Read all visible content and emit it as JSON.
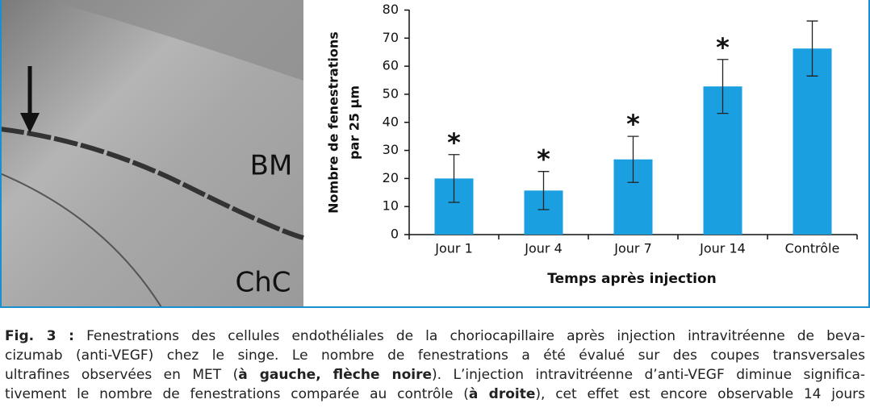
{
  "micrograph": {
    "labels": [
      "BM",
      "ChC"
    ]
  },
  "chart_data": {
    "type": "bar",
    "y_label": [
      "Nombre de fenestrations",
      "par 25 µm"
    ],
    "x_label": "Temps après injection",
    "categories": [
      "Jour 1",
      "Jour 4",
      "Jour 7",
      "Jour 14",
      "Contrôle"
    ],
    "series": [
      {
        "color": "#1a9fe0",
        "values": [
          20,
          15.7,
          26.8,
          52.8,
          66.3
        ],
        "errors": [
          8.5,
          6.8,
          8.2,
          9.6,
          9.8
        ]
      }
    ],
    "annotations": [
      "*",
      "*",
      "*",
      "*",
      null
    ],
    "ylim": [
      0,
      80
    ],
    "yticks": [
      0,
      10,
      20,
      30,
      40,
      50,
      60,
      70,
      80
    ],
    "grid": false
  },
  "caption": {
    "lines": [
      [
        {
          "text": "Fig. 3 :",
          "bold": true
        },
        {
          "text": " Fenestrations des cellules endothéliales de la choriocapillaire après injection intravitréenne de beva-",
          "bold": false
        }
      ],
      [
        {
          "text": "cizumab (anti-VEGF) chez le singe. Le nombre de fenestrations a été évalué sur des coupes transversales",
          "bold": false
        }
      ],
      [
        {
          "text": "ultrafines observées en MET (",
          "bold": false
        },
        {
          "text": "à gauche, flèche noire",
          "bold": true
        },
        {
          "text": "). L’injection intravitréenne d’anti-VEGF diminue significa-",
          "bold": false
        }
      ],
      [
        {
          "text": "tivement le nombre de fenestrations comparée au contrôle (",
          "bold": false
        },
        {
          "text": "à droite",
          "bold": true
        },
        {
          "text": "), cet effet est encore observable 14 jours",
          "bold": false
        }
      ]
    ]
  }
}
